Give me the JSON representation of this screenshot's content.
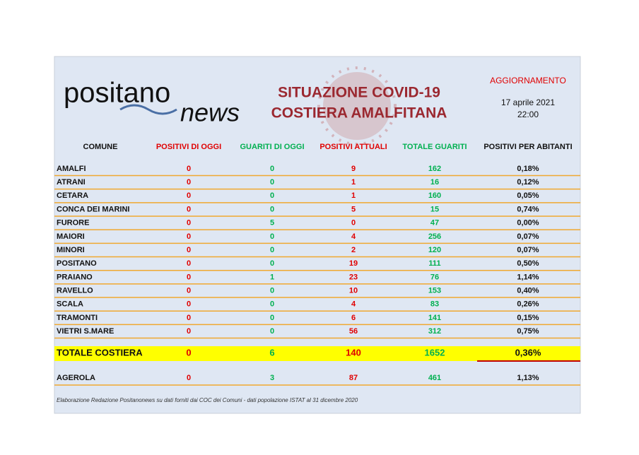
{
  "logo": {
    "line1": "positano",
    "line2": "news"
  },
  "title": {
    "line1": "SITUAZIONE COVID-19",
    "line2": "COSTIERA AMALFITANA"
  },
  "update": {
    "label": "AGGIORNAMENTO",
    "date": "17 aprile 2021",
    "time": "22:00"
  },
  "table": {
    "header": [
      "COMUNE",
      "POSITIVI DI OGGI",
      "GUARITI DI OGGI",
      "POSITIVI ATTUALI",
      "TOTALE GUARITI",
      "POSITIVI  PER ABITANTI"
    ],
    "rows": [
      [
        "AMALFI",
        0,
        0,
        9,
        162,
        "0,18%"
      ],
      [
        "ATRANI",
        0,
        0,
        1,
        16,
        "0,12%"
      ],
      [
        "CETARA",
        0,
        0,
        1,
        160,
        "0,05%"
      ],
      [
        "CONCA DEI MARINI",
        0,
        0,
        5,
        15,
        "0,74%"
      ],
      [
        "FURORE",
        0,
        5,
        0,
        47,
        "0,00%"
      ],
      [
        "MAIORI",
        0,
        0,
        4,
        256,
        "0,07%"
      ],
      [
        "MINORI",
        0,
        0,
        2,
        120,
        "0,07%"
      ],
      [
        "POSITANO",
        0,
        0,
        19,
        111,
        "0,50%"
      ],
      [
        "PRAIANO",
        0,
        1,
        23,
        76,
        "1,14%"
      ],
      [
        "RAVELLO",
        0,
        0,
        10,
        153,
        "0,40%"
      ],
      [
        "SCALA",
        0,
        0,
        4,
        83,
        "0,26%"
      ],
      [
        "TRAMONTI",
        0,
        0,
        6,
        141,
        "0,15%"
      ],
      [
        "VIETRI S.MARE",
        0,
        0,
        56,
        312,
        "0,75%"
      ]
    ],
    "total": [
      "TOTALE COSTIERA",
      0,
      6,
      140,
      1652,
      "0,36%"
    ],
    "extra": [
      "AGEROLA",
      0,
      3,
      87,
      461,
      "1,13%"
    ]
  },
  "footer": "Elaborazione Redazione Positanonews su dati forniti dai COC dei Comuni - dati popolazione ISTAT al 31 dicembre 2020"
}
